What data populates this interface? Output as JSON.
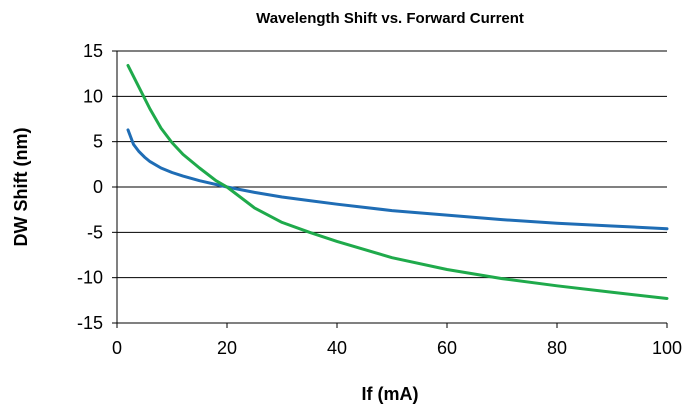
{
  "chart_data": {
    "type": "line",
    "title": "Wavelength Shift vs. Forward Current",
    "xlabel": "If (mA)",
    "ylabel": "DW Shift (nm)",
    "xlim": [
      0,
      100
    ],
    "ylim": [
      -15,
      15
    ],
    "x_ticks": [
      0,
      20,
      40,
      60,
      80,
      100
    ],
    "y_ticks": [
      15,
      10,
      5,
      0,
      -5,
      -10,
      -15
    ],
    "grid": "horizontal",
    "series": [
      {
        "color": "#1f6db5",
        "x": [
          2,
          3,
          4,
          5,
          6,
          8,
          10,
          12,
          15,
          20,
          25,
          30,
          35,
          40,
          50,
          60,
          70,
          80,
          90,
          100
        ],
        "y": [
          6.3,
          4.7,
          3.9,
          3.3,
          2.8,
          2.1,
          1.6,
          1.2,
          0.7,
          0.0,
          -0.6,
          -1.1,
          -1.5,
          -1.9,
          -2.6,
          -3.1,
          -3.6,
          -4.0,
          -4.3,
          -4.6
        ]
      },
      {
        "color": "#1faa4b",
        "x": [
          2,
          4,
          6,
          8,
          10,
          12,
          15,
          18,
          20,
          25,
          30,
          35,
          40,
          50,
          60,
          70,
          80,
          90,
          100
        ],
        "y": [
          13.4,
          11.0,
          8.6,
          6.5,
          4.9,
          3.6,
          2.1,
          0.7,
          0.0,
          -2.3,
          -3.9,
          -5.0,
          -6.0,
          -7.8,
          -9.1,
          -10.1,
          -10.9,
          -11.6,
          -12.3
        ]
      }
    ]
  }
}
